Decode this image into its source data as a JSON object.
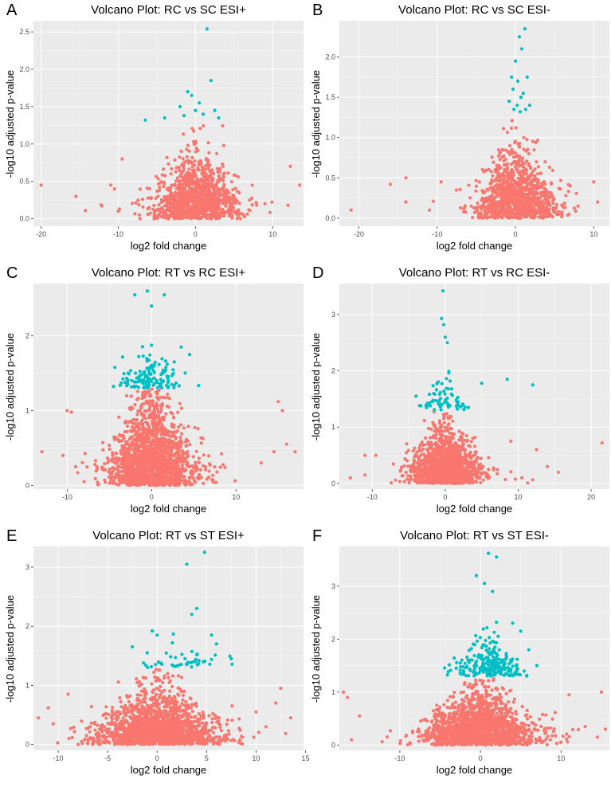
{
  "chart_data": [
    {
      "type": "scatter",
      "letter": "A",
      "title": "Volcano Plot: RC vs SC ESI+",
      "xlabel": "log2 fold change",
      "ylabel": "-log10 adjusted p-value",
      "xlim": [
        -21,
        14
      ],
      "ylim": [
        -0.1,
        2.65
      ],
      "xticks": [
        -20,
        -10,
        0,
        10
      ],
      "yticks": [
        0.0,
        0.5,
        1.0,
        1.5,
        2.0,
        2.5
      ],
      "xtick_labels": [
        "-20",
        "-10",
        "0",
        "10"
      ],
      "ytick_labels": [
        "0.0",
        "0.5",
        "1.0",
        "1.5",
        "2.0",
        "2.5"
      ],
      "threshold": 1.3,
      "grid": true,
      "colors": {
        "not_significant": "#F8766D",
        "significant": "#00BFC4",
        "panel_bg": "#EBEBEB",
        "grid": "#FFFFFF"
      },
      "cloud": {
        "count": 1100,
        "x_sd": 2.6,
        "y_scale": 0.38,
        "y_max": 1.28,
        "seed": 11
      },
      "extra_points": [
        [
          -20,
          0.45
        ],
        [
          -15.5,
          0.3
        ],
        [
          -11,
          0.45
        ],
        [
          -10.5,
          0.4
        ],
        [
          -9.5,
          0.8
        ],
        [
          -10,
          0.1
        ],
        [
          12.3,
          0.7
        ],
        [
          13.5,
          0.45
        ],
        [
          12,
          0.18
        ],
        [
          9,
          0.2
        ],
        [
          7,
          0.25
        ]
      ],
      "significant_points": [
        [
          1.5,
          2.54
        ],
        [
          2,
          1.85
        ],
        [
          -1,
          1.7
        ],
        [
          -0.5,
          1.65
        ],
        [
          -4,
          1.35
        ],
        [
          -6.5,
          1.32
        ],
        [
          -2,
          1.5
        ],
        [
          0,
          1.45
        ],
        [
          1,
          1.4
        ],
        [
          0.5,
          1.55
        ],
        [
          -1.5,
          1.38
        ],
        [
          2.5,
          1.45
        ],
        [
          3,
          1.35
        ]
      ]
    },
    {
      "type": "scatter",
      "letter": "B",
      "title": "Volcano Plot: RC vs SC ESI-",
      "xlabel": "log2 fold change",
      "ylabel": "-log10 adjusted p-value",
      "xlim": [
        -22.5,
        12
      ],
      "ylim": [
        -0.1,
        2.45
      ],
      "xticks": [
        -20,
        -10,
        0,
        10
      ],
      "yticks": [
        0.0,
        0.5,
        1.0,
        1.5,
        2.0
      ],
      "xtick_labels": [
        "-20",
        "-10",
        "0",
        "10"
      ],
      "ytick_labels": [
        "0.0",
        "0.5",
        "1.0",
        "1.5",
        "2.0"
      ],
      "threshold": 1.3,
      "grid": true,
      "colors": {
        "not_significant": "#F8766D",
        "significant": "#00BFC4",
        "panel_bg": "#EBEBEB",
        "grid": "#FFFFFF"
      },
      "cloud": {
        "count": 1100,
        "x_sd": 2.3,
        "y_scale": 0.35,
        "y_max": 1.28,
        "seed": 23
      },
      "extra_points": [
        [
          -21,
          0.1
        ],
        [
          -16,
          0.42
        ],
        [
          -14,
          0.5
        ],
        [
          -14,
          0.2
        ],
        [
          -11,
          0.1
        ],
        [
          -9.5,
          0.45
        ],
        [
          10.5,
          0.2
        ],
        [
          10,
          0.45
        ],
        [
          7,
          0.4
        ],
        [
          8,
          0.15
        ]
      ],
      "significant_points": [
        [
          1.2,
          2.35
        ],
        [
          0.5,
          2.25
        ],
        [
          0.8,
          2.1
        ],
        [
          0,
          1.95
        ],
        [
          -0.5,
          1.75
        ],
        [
          1.5,
          1.75
        ],
        [
          0.3,
          1.7
        ],
        [
          -0.3,
          1.6
        ],
        [
          1,
          1.55
        ],
        [
          0.7,
          1.5
        ],
        [
          -0.8,
          1.45
        ],
        [
          0.2,
          1.4
        ],
        [
          1.3,
          1.35
        ],
        [
          -0.2,
          1.35
        ],
        [
          0.6,
          1.32
        ],
        [
          1.8,
          1.4
        ]
      ]
    },
    {
      "type": "scatter",
      "letter": "C",
      "title": "Volcano Plot: RT vs RC ESI+",
      "xlabel": "log2 fold change",
      "ylabel": "-log10 adjusted p-value",
      "xlim": [
        -14,
        18
      ],
      "ylim": [
        -0.05,
        2.7
      ],
      "xticks": [
        -10,
        0,
        10
      ],
      "yticks": [
        0,
        1,
        2
      ],
      "xtick_labels": [
        "-10",
        "0",
        "10"
      ],
      "ytick_labels": [
        "0",
        "1",
        "2"
      ],
      "threshold": 1.3,
      "grid": true,
      "colors": {
        "not_significant": "#F8766D",
        "significant": "#00BFC4",
        "panel_bg": "#EBEBEB",
        "grid": "#FFFFFF"
      },
      "cloud": {
        "count": 1600,
        "x_sd": 2.4,
        "y_scale": 0.5,
        "y_max": 1.29,
        "seed": 37
      },
      "extra_points": [
        [
          -13,
          0.45
        ],
        [
          -10,
          1.0
        ],
        [
          -9.5,
          0.98
        ],
        [
          -10.5,
          0.4
        ],
        [
          -9,
          0.25
        ],
        [
          -8,
          0.05
        ],
        [
          15,
          1.12
        ],
        [
          15.5,
          1.0
        ],
        [
          17,
          0.45
        ],
        [
          16,
          0.55
        ],
        [
          14.5,
          0.45
        ],
        [
          13,
          0.3
        ]
      ],
      "cloud_significant": {
        "count": 140,
        "x_sd": 1.7,
        "y_min": 1.3,
        "y_scale": 0.28,
        "y_max": 2.6,
        "seed": 41
      },
      "significant_points": [
        [
          -2,
          2.55
        ],
        [
          -0.5,
          2.6
        ],
        [
          1.5,
          2.55
        ],
        [
          0,
          2.4
        ],
        [
          3.5,
          1.85
        ],
        [
          4.5,
          1.75
        ]
      ]
    },
    {
      "type": "scatter",
      "letter": "D",
      "title": "Volcano Plot: RT vs RC ESI-",
      "xlabel": "log2 fold change",
      "ylabel": "-log10 adjusted p-value",
      "xlim": [
        -14.5,
        22.5
      ],
      "ylim": [
        -0.1,
        3.55
      ],
      "xticks": [
        -10,
        0,
        10,
        20
      ],
      "yticks": [
        0,
        1,
        2,
        3
      ],
      "xtick_labels": [
        "-10",
        "0",
        "10",
        "20"
      ],
      "ytick_labels": [
        "0",
        "1",
        "2",
        "3"
      ],
      "threshold": 1.3,
      "grid": true,
      "colors": {
        "not_significant": "#F8766D",
        "significant": "#00BFC4",
        "panel_bg": "#EBEBEB",
        "grid": "#FFFFFF"
      },
      "cloud": {
        "count": 1300,
        "x_sd": 2.2,
        "y_scale": 0.42,
        "y_max": 1.29,
        "seed": 53
      },
      "extra_points": [
        [
          -13,
          0.1
        ],
        [
          -11,
          0.5
        ],
        [
          -11,
          0.15
        ],
        [
          -9.5,
          0.5
        ],
        [
          21.5,
          0.72
        ],
        [
          15.5,
          0.2
        ],
        [
          14,
          0.3
        ],
        [
          12.5,
          0.6
        ],
        [
          10.5,
          0.1
        ],
        [
          9,
          0.75
        ]
      ],
      "cloud_significant": {
        "count": 70,
        "x_sd": 1.6,
        "y_min": 1.3,
        "y_scale": 0.3,
        "y_max": 2.2,
        "seed": 59
      },
      "significant_points": [
        [
          -0.3,
          3.42
        ],
        [
          -0.5,
          2.93
        ],
        [
          -0.2,
          2.82
        ],
        [
          0,
          2.6
        ],
        [
          0.3,
          2.5
        ],
        [
          8.5,
          1.85
        ],
        [
          12,
          1.75
        ],
        [
          5,
          1.78
        ],
        [
          -4,
          1.55
        ]
      ]
    },
    {
      "type": "scatter",
      "letter": "E",
      "title": "Volcano Plot: RT vs ST ESI+",
      "xlabel": "log2 fold change",
      "ylabel": "-log10 adjusted p-value",
      "xlim": [
        -12.5,
        14.8
      ],
      "ylim": [
        -0.1,
        3.35
      ],
      "xticks": [
        -10,
        -5,
        0,
        5,
        10,
        15
      ],
      "yticks": [
        0,
        1,
        2,
        3
      ],
      "xtick_labels": [
        "-10",
        "-5",
        "0",
        "5",
        "10",
        "15"
      ],
      "ytick_labels": [
        "0",
        "1",
        "2",
        "3"
      ],
      "threshold": 1.3,
      "grid": true,
      "colors": {
        "not_significant": "#F8766D",
        "significant": "#00BFC4",
        "panel_bg": "#EBEBEB",
        "grid": "#FFFFFF"
      },
      "cloud": {
        "count": 1700,
        "x_sd": 2.8,
        "y_scale": 0.38,
        "y_max": 1.28,
        "seed": 67
      },
      "extra_points": [
        [
          -12,
          0.45
        ],
        [
          -11,
          0.62
        ],
        [
          -10.5,
          0.35
        ],
        [
          -9,
          0.85
        ],
        [
          13.5,
          0.45
        ],
        [
          12.5,
          0.95
        ],
        [
          12,
          0.7
        ],
        [
          11,
          0.3
        ],
        [
          10,
          0.55
        ]
      ],
      "cloud_significant": {
        "count": 45,
        "x_sd": 2.2,
        "x_mean": 2.5,
        "y_min": 1.3,
        "y_scale": 0.22,
        "y_max": 1.95,
        "seed": 71
      },
      "significant_points": [
        [
          4.8,
          3.25
        ],
        [
          3,
          3.05
        ],
        [
          4,
          2.3
        ],
        [
          3.5,
          2.2
        ],
        [
          -0.5,
          1.92
        ],
        [
          0,
          1.85
        ],
        [
          -2.5,
          1.65
        ],
        [
          5.5,
          1.85
        ],
        [
          6,
          1.7
        ],
        [
          7.5,
          1.45
        ],
        [
          -1,
          1.55
        ]
      ]
    },
    {
      "type": "scatter",
      "letter": "F",
      "title": "Volcano Plot: RT vs ST ESI-",
      "xlabel": "log2 fold change",
      "ylabel": "-log10 adjusted p-value",
      "xlim": [
        -17.5,
        16
      ],
      "ylim": [
        -0.1,
        3.75
      ],
      "xticks": [
        -10,
        0,
        10
      ],
      "yticks": [
        0,
        1,
        2,
        3
      ],
      "xtick_labels": [
        "-10",
        "0",
        "10"
      ],
      "ytick_labels": [
        "0",
        "1",
        "2",
        "3"
      ],
      "threshold": 1.3,
      "grid": true,
      "colors": {
        "not_significant": "#F8766D",
        "significant": "#00BFC4",
        "panel_bg": "#EBEBEB",
        "grid": "#FFFFFF"
      },
      "cloud": {
        "count": 1700,
        "x_sd": 3.0,
        "y_scale": 0.42,
        "y_max": 1.29,
        "seed": 83
      },
      "extra_points": [
        [
          -17,
          1.0
        ],
        [
          -16,
          0.1
        ],
        [
          -15,
          0.55
        ],
        [
          -16.5,
          0.9
        ],
        [
          15,
          1.0
        ],
        [
          15.5,
          0.3
        ],
        [
          14.5,
          0.15
        ],
        [
          13,
          0.35
        ],
        [
          11,
          0.95
        ]
      ],
      "cloud_significant": {
        "count": 230,
        "x_sd": 1.9,
        "x_mean": 1.0,
        "y_min": 1.3,
        "y_scale": 0.4,
        "y_max": 3.0,
        "seed": 89
      },
      "significant_points": [
        [
          1,
          3.62
        ],
        [
          2,
          3.55
        ],
        [
          -0.5,
          3.2
        ],
        [
          0.5,
          3.05
        ],
        [
          1.5,
          2.9
        ],
        [
          4,
          2.3
        ],
        [
          5,
          2.15
        ],
        [
          6,
          1.8
        ],
        [
          7,
          1.5
        ]
      ]
    }
  ]
}
